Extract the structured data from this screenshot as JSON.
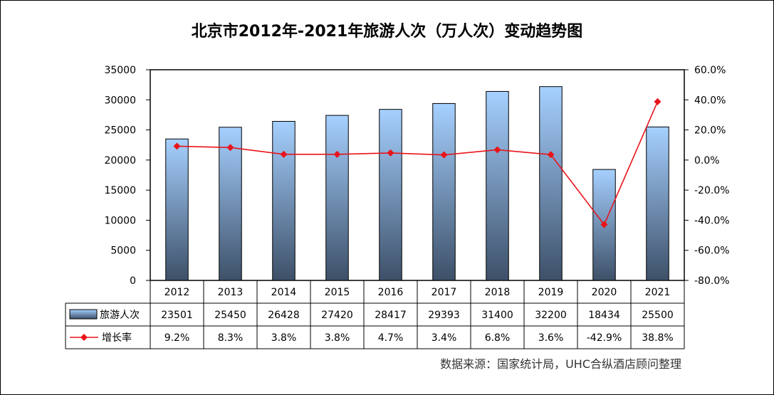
{
  "title": "北京市2012年-2021年旅游人次（万人次）变动趋势图",
  "source": "数据来源：国家统计局，UHC合纵酒店顾问整理",
  "colors": {
    "line": "#e8141b",
    "bar_top": "#a6d0ff",
    "bar_bottom": "#3d5068",
    "axis": "#000000"
  },
  "chart_data": {
    "type": "bar+line",
    "categories": [
      "2012",
      "2013",
      "2014",
      "2015",
      "2016",
      "2017",
      "2018",
      "2019",
      "2020",
      "2021"
    ],
    "series": [
      {
        "name": "旅游人次",
        "type": "bar",
        "axis": "left",
        "values": [
          23501,
          25450,
          26428,
          27420,
          28417,
          29393,
          31400,
          32200,
          18434,
          25500
        ],
        "labels": [
          "23501",
          "25450",
          "26428",
          "27420",
          "28417",
          "29393",
          "31400",
          "32200",
          "18434",
          "25500"
        ]
      },
      {
        "name": "增长率",
        "type": "line",
        "axis": "right",
        "values": [
          9.2,
          8.3,
          3.8,
          3.8,
          4.7,
          3.4,
          6.8,
          3.6,
          -42.9,
          38.8
        ],
        "labels": [
          "9.2%",
          "8.3%",
          "3.8%",
          "3.8%",
          "4.7%",
          "3.4%",
          "6.8%",
          "3.6%",
          "-42.9%",
          "38.8%"
        ]
      }
    ],
    "y_left": {
      "min": 0,
      "max": 35000,
      "ticks": [
        "0",
        "5000",
        "10000",
        "15000",
        "20000",
        "25000",
        "30000",
        "35000"
      ]
    },
    "y_right": {
      "min": -80,
      "max": 60,
      "ticks": [
        "-80.0%",
        "-60.0%",
        "-40.0%",
        "-20.0%",
        "0.0%",
        "20.0%",
        "40.0%",
        "60.0%"
      ]
    },
    "grid": false,
    "legend": "data-table-left"
  }
}
